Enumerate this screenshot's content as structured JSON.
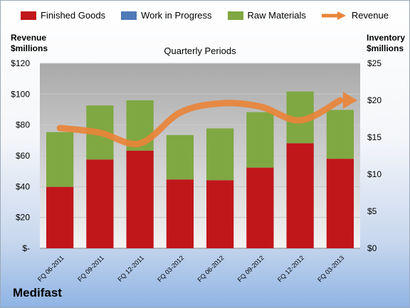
{
  "brand": "Medifast",
  "chart_data": {
    "type": "bar",
    "subtype": "stacked bar with line overlay",
    "title": "Quarterly Periods",
    "categories": [
      "FQ 06-2011",
      "FQ 09-2011",
      "FQ 12-2011",
      "FQ 03-2012",
      "FQ 06-2012",
      "FQ 09-2012",
      "FQ 12-2012",
      "FQ 03-2013"
    ],
    "left_axis": {
      "label_line1": "Revenue",
      "label_line2": "$millions",
      "ylim": [
        0,
        120
      ],
      "ticks": [
        "$-",
        "$20",
        "$40",
        "$60",
        "$80",
        "$100",
        "$120"
      ]
    },
    "right_axis": {
      "label_line1": "Inventory",
      "label_line2": "$millions",
      "ylim": [
        0,
        25
      ],
      "ticks": [
        "$0",
        "$5",
        "$10",
        "$15",
        "$20",
        "$25"
      ]
    },
    "series": [
      {
        "name": "Finished Goods",
        "axis": "right",
        "color": "#c0171b",
        "values": [
          8.3,
          12.0,
          13.2,
          9.3,
          9.2,
          10.9,
          14.2,
          12.1
        ]
      },
      {
        "name": "Work in Progress",
        "axis": "right",
        "color": "#4f7ab8",
        "values": [
          0,
          0,
          0,
          0,
          0,
          0,
          0,
          0
        ]
      },
      {
        "name": "Raw Materials",
        "axis": "right",
        "color": "#7fa842",
        "values": [
          7.4,
          7.3,
          6.8,
          6.0,
          7.0,
          7.5,
          7.0,
          6.6
        ]
      },
      {
        "name": "Revenue",
        "axis": "left",
        "color": "#e8843a",
        "type": "line",
        "values": [
          78,
          75,
          68,
          88,
          94,
          92,
          83,
          96
        ]
      }
    ],
    "grid": true,
    "legend_position": "top"
  }
}
